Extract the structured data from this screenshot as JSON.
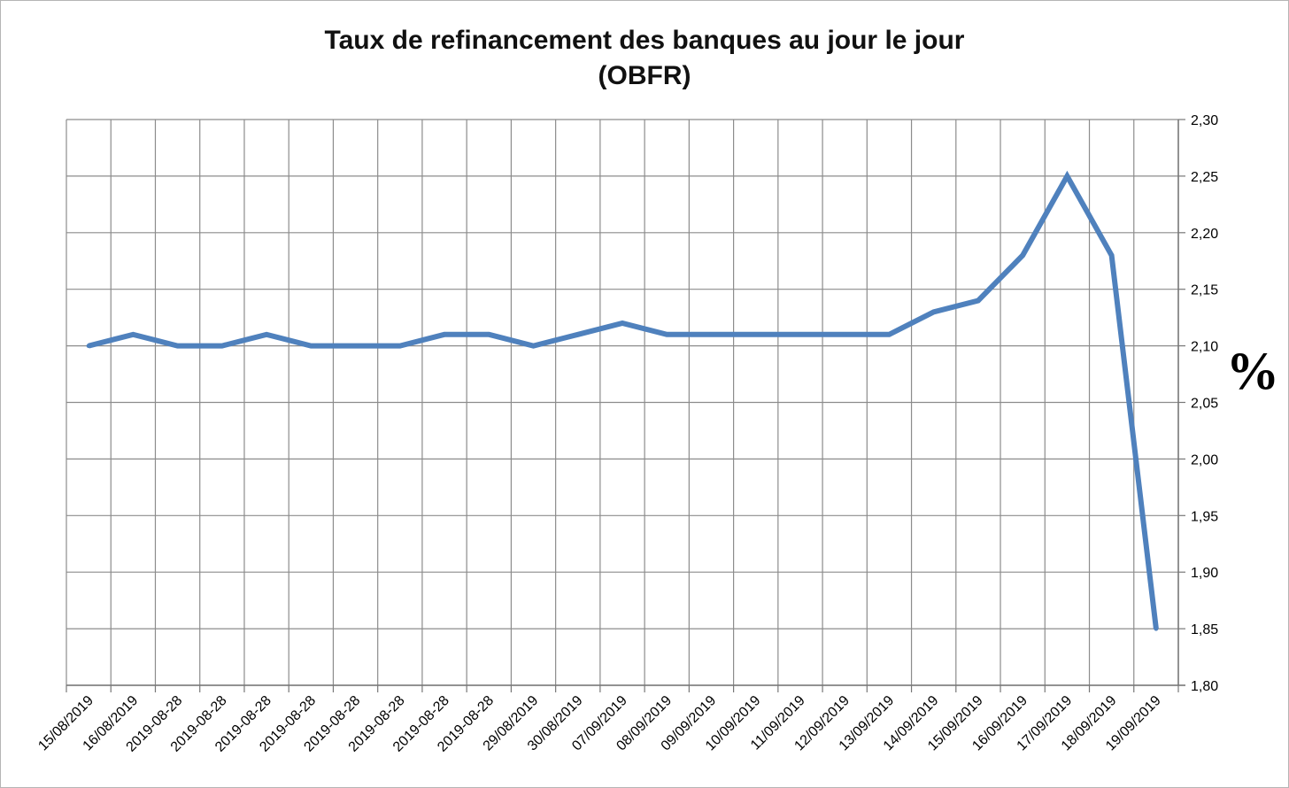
{
  "chart_data": {
    "type": "line",
    "title": "Taux de refinancement des banques au jour le jour",
    "subtitle": "(OBFR)",
    "y_unit_label": "%",
    "x": [
      "15/08/2019",
      "16/08/2019",
      "2019-08-28",
      "2019-08-28",
      "2019-08-28",
      "2019-08-28",
      "2019-08-28",
      "2019-08-28",
      "2019-08-28",
      "2019-08-28",
      "29/08/2019",
      "30/08/2019",
      "07/09/2019",
      "08/09/2019",
      "09/09/2019",
      "10/09/2019",
      "11/09/2019",
      "12/09/2019",
      "13/09/2019",
      "14/09/2019",
      "15/09/2019",
      "16/09/2019",
      "17/09/2019",
      "18/09/2019",
      "19/09/2019"
    ],
    "series": [
      {
        "values": [
          2.1,
          2.11,
          2.1,
          2.1,
          2.11,
          2.1,
          2.1,
          2.1,
          2.11,
          2.11,
          2.1,
          2.11,
          2.12,
          2.11,
          2.11,
          2.11,
          2.11,
          2.11,
          2.11,
          2.13,
          2.14,
          2.18,
          2.25,
          2.18,
          1.85
        ]
      }
    ],
    "y_ticks": [
      "1,80",
      "1,85",
      "1,90",
      "1,95",
      "2,00",
      "2,05",
      "2,10",
      "2,15",
      "2,20",
      "2,25",
      "2,30"
    ],
    "ylim": [
      1.8,
      2.3
    ],
    "y_axis_side": "right",
    "grid": true,
    "line_color": "#4f81bd",
    "grid_color": "#8c8c8c"
  }
}
